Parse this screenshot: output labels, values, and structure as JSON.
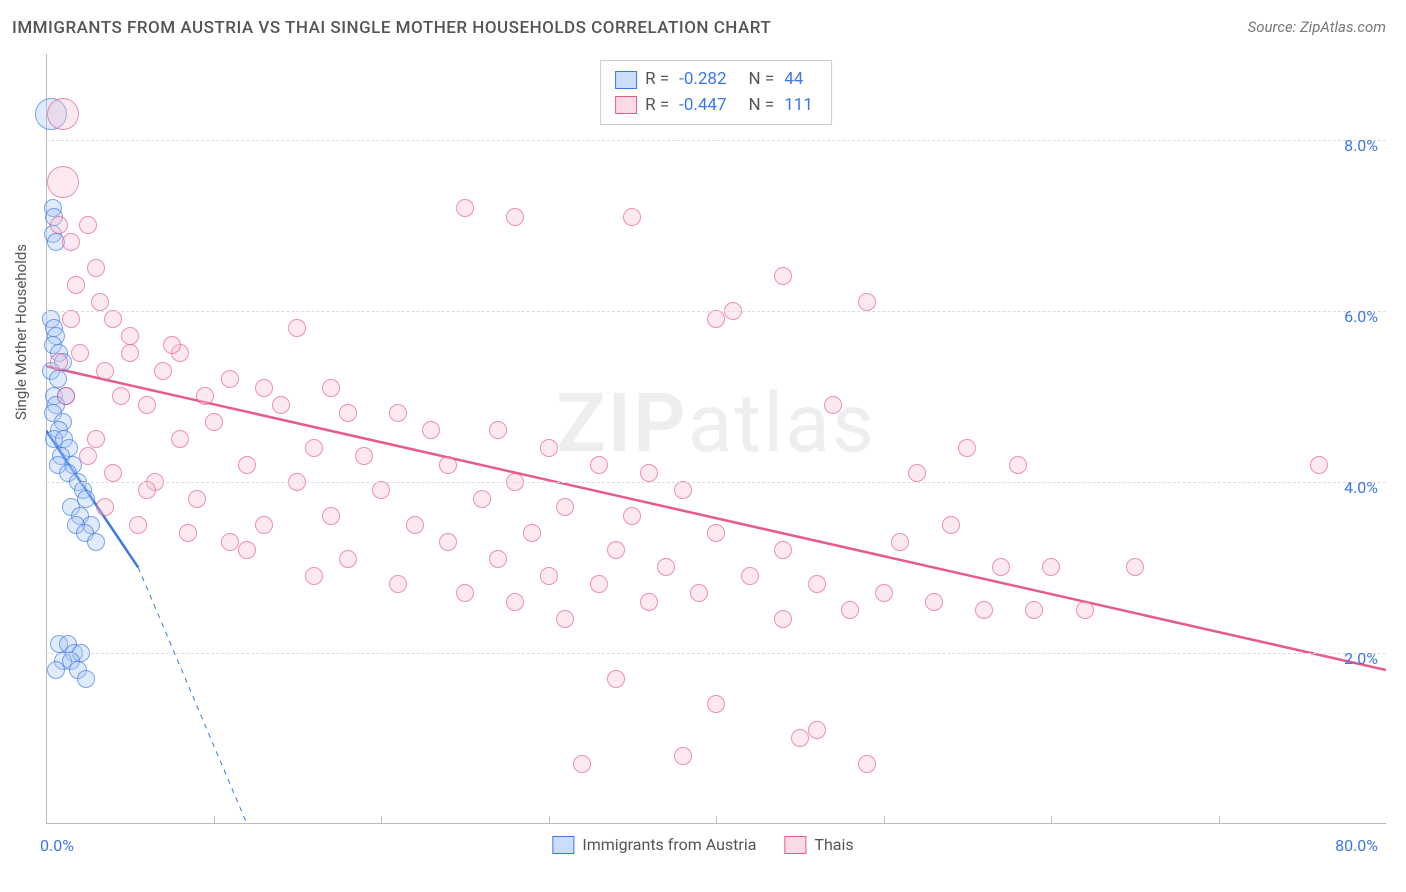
{
  "title": "IMMIGRANTS FROM AUSTRIA VS THAI SINGLE MOTHER HOUSEHOLDS CORRELATION CHART",
  "source_label": "Source:",
  "source_value": "ZipAtlas.com",
  "watermark": {
    "left": "ZIP",
    "right": "atlas"
  },
  "chart": {
    "type": "scatter",
    "ylabel": "Single Mother Households",
    "xlim": [
      0,
      80
    ],
    "ylim": [
      0,
      9
    ],
    "x_tick_step": 10,
    "y_tick_step": 2,
    "y_tick_start": 2,
    "y_tick_end": 8,
    "x_axis_labels": [
      {
        "value": 0,
        "text": "0.0%"
      },
      {
        "value": 80,
        "text": "80.0%"
      }
    ],
    "y_axis_label_suffix": "%",
    "background_color": "#ffffff",
    "grid_color": "#dddddd",
    "axis_color": "#bbbbbb",
    "tick_label_color": "#3b78e7",
    "marker_radius": 9,
    "marker_radius_big": 16,
    "marker_border_width": 1.5,
    "marker_fill_opacity": 0.28
  },
  "series": [
    {
      "key": "austria",
      "label": "Immigrants from Austria",
      "color": "#3b78e7",
      "fill": "#a9c6f5",
      "R": "-0.282",
      "N": "44",
      "trend": {
        "x1": 0,
        "y1": 4.6,
        "x2": 5.5,
        "y2": 3.0,
        "extend_x2": 12,
        "extend_y2": 0,
        "width": 2.5
      },
      "points": [
        [
          0.3,
          8.3,
          true
        ],
        [
          0.4,
          7.2
        ],
        [
          0.5,
          7.1
        ],
        [
          0.4,
          6.9
        ],
        [
          0.6,
          6.8
        ],
        [
          0.3,
          5.9
        ],
        [
          0.5,
          5.8
        ],
        [
          0.6,
          5.7
        ],
        [
          0.4,
          5.6
        ],
        [
          0.8,
          5.5
        ],
        [
          1.0,
          5.4
        ],
        [
          0.3,
          5.3
        ],
        [
          0.7,
          5.2
        ],
        [
          0.5,
          5.0
        ],
        [
          1.2,
          5.0
        ],
        [
          0.6,
          4.9
        ],
        [
          0.4,
          4.8
        ],
        [
          1.0,
          4.7
        ],
        [
          0.8,
          4.6
        ],
        [
          0.5,
          4.5
        ],
        [
          1.1,
          4.5
        ],
        [
          1.4,
          4.4
        ],
        [
          0.9,
          4.3
        ],
        [
          1.6,
          4.2
        ],
        [
          0.7,
          4.2
        ],
        [
          1.3,
          4.1
        ],
        [
          1.9,
          4.0
        ],
        [
          2.2,
          3.9
        ],
        [
          2.4,
          3.8
        ],
        [
          1.5,
          3.7
        ],
        [
          2.0,
          3.6
        ],
        [
          2.7,
          3.5
        ],
        [
          1.8,
          3.5
        ],
        [
          2.3,
          3.4
        ],
        [
          3.0,
          3.3
        ],
        [
          0.8,
          2.1
        ],
        [
          1.3,
          2.1
        ],
        [
          1.7,
          2.0
        ],
        [
          2.1,
          2.0
        ],
        [
          1.0,
          1.9
        ],
        [
          1.5,
          1.9
        ],
        [
          0.6,
          1.8
        ],
        [
          1.9,
          1.8
        ],
        [
          2.4,
          1.7
        ]
      ]
    },
    {
      "key": "thai",
      "label": "Thais",
      "color": "#e75a8d",
      "fill": "#f7c2d4",
      "R": "-0.447",
      "N": "111",
      "trend": {
        "x1": 0,
        "y1": 5.35,
        "x2": 80,
        "y2": 1.8,
        "width": 2.5
      },
      "points": [
        [
          1.0,
          8.3,
          true
        ],
        [
          1.0,
          7.5,
          true
        ],
        [
          0.8,
          7.0
        ],
        [
          2.5,
          7.0
        ],
        [
          1.5,
          6.8
        ],
        [
          25,
          7.2
        ],
        [
          28,
          7.1
        ],
        [
          35,
          7.1
        ],
        [
          3.0,
          6.5
        ],
        [
          1.5,
          5.9
        ],
        [
          4.0,
          5.9
        ],
        [
          15,
          5.8
        ],
        [
          2.0,
          5.5
        ],
        [
          5.0,
          5.5
        ],
        [
          8.0,
          5.5
        ],
        [
          3.5,
          5.3
        ],
        [
          7.0,
          5.3
        ],
        [
          11,
          5.2
        ],
        [
          13,
          5.1
        ],
        [
          17,
          5.1
        ],
        [
          1.2,
          5.0
        ],
        [
          4.5,
          5.0
        ],
        [
          9.5,
          5.0
        ],
        [
          6.0,
          4.9
        ],
        [
          14,
          4.9
        ],
        [
          18,
          4.8
        ],
        [
          21,
          4.8
        ],
        [
          40,
          5.9
        ],
        [
          44,
          6.4
        ],
        [
          47,
          4.9
        ],
        [
          10,
          4.7
        ],
        [
          23,
          4.6
        ],
        [
          27,
          4.6
        ],
        [
          3.0,
          4.5
        ],
        [
          8.0,
          4.5
        ],
        [
          16,
          4.4
        ],
        [
          30,
          4.4
        ],
        [
          19,
          4.3
        ],
        [
          12,
          4.2
        ],
        [
          24,
          4.2
        ],
        [
          33,
          4.2
        ],
        [
          36,
          4.1
        ],
        [
          6.5,
          4.0
        ],
        [
          15,
          4.0
        ],
        [
          28,
          4.0
        ],
        [
          41,
          6.0
        ],
        [
          49,
          6.1
        ],
        [
          20,
          3.9
        ],
        [
          38,
          3.9
        ],
        [
          9.0,
          3.8
        ],
        [
          26,
          3.8
        ],
        [
          31,
          3.7
        ],
        [
          17,
          3.6
        ],
        [
          35,
          3.6
        ],
        [
          13,
          3.5
        ],
        [
          22,
          3.5
        ],
        [
          29,
          3.4
        ],
        [
          40,
          3.4
        ],
        [
          11,
          3.3
        ],
        [
          24,
          3.3
        ],
        [
          34,
          3.2
        ],
        [
          44,
          3.2
        ],
        [
          18,
          3.1
        ],
        [
          27,
          3.1
        ],
        [
          37,
          3.0
        ],
        [
          16,
          2.9
        ],
        [
          30,
          2.9
        ],
        [
          42,
          2.9
        ],
        [
          21,
          2.8
        ],
        [
          33,
          2.8
        ],
        [
          46,
          2.8
        ],
        [
          25,
          2.7
        ],
        [
          39,
          2.7
        ],
        [
          50,
          2.7
        ],
        [
          28,
          2.6
        ],
        [
          36,
          2.6
        ],
        [
          53,
          2.6
        ],
        [
          56,
          2.5
        ],
        [
          48,
          2.5
        ],
        [
          31,
          2.4
        ],
        [
          44,
          2.4
        ],
        [
          59,
          2.5
        ],
        [
          62,
          2.5
        ],
        [
          34,
          1.7
        ],
        [
          40,
          1.4
        ],
        [
          46,
          1.1
        ],
        [
          38,
          0.8
        ],
        [
          32,
          0.7
        ],
        [
          49,
          0.7
        ],
        [
          51,
          3.3
        ],
        [
          54,
          3.5
        ],
        [
          57,
          3.0
        ],
        [
          60,
          3.0
        ],
        [
          65,
          3.0
        ],
        [
          52,
          4.1
        ],
        [
          55,
          4.4
        ],
        [
          58,
          4.2
        ],
        [
          5.0,
          5.7
        ],
        [
          7.5,
          5.6
        ],
        [
          2.5,
          4.3
        ],
        [
          4.0,
          4.1
        ],
        [
          6.0,
          3.9
        ],
        [
          3.5,
          3.7
        ],
        [
          5.5,
          3.5
        ],
        [
          8.5,
          3.4
        ],
        [
          12,
          3.2
        ],
        [
          76,
          4.2
        ],
        [
          1.8,
          6.3
        ],
        [
          3.2,
          6.1
        ],
        [
          0.8,
          5.4
        ],
        [
          45,
          1.0
        ]
      ]
    }
  ],
  "stats_labels": {
    "R": "R =",
    "N": "N ="
  },
  "legend_position": "bottom-center",
  "stats_position": "top-center"
}
